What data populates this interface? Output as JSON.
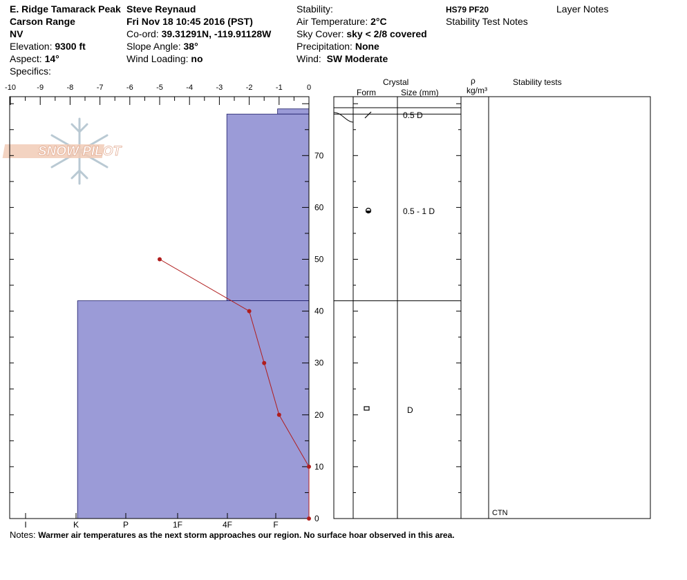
{
  "header": {
    "location": "E. Ridge Tamarack Peak",
    "range": "Carson Range",
    "state": "NV",
    "elevation_label": "Elevation:",
    "elevation_value": "9300 ft",
    "aspect_label": "Aspect:",
    "aspect_value": "14°",
    "specifics_label": "Specifics:",
    "observer": "Steve Reynaud",
    "datetime": "Fri Nov 18 10:45 2016 (PST)",
    "coord_label": "Co-ord:",
    "coord_value": "39.31291N, -119.91128W",
    "slope_label": "Slope Angle:",
    "slope_value": "38°",
    "wind_loading_label": "Wind Loading:",
    "wind_loading_value": "no",
    "stability_label": "Stability:",
    "air_temp_label": "Air Temperature:",
    "air_temp_value": "2°C",
    "sky_label": "Sky Cover:",
    "sky_value": "sky < 2/8 covered",
    "precip_label": "Precipitation:",
    "precip_value": "None",
    "wind_label": "Wind:",
    "wind_value": "SW Moderate",
    "hs_pf": "HS79 PF20",
    "stability_test_notes": "Stability Test Notes",
    "layer_notes": "Layer Notes"
  },
  "table": {
    "crystal_header": "Crystal",
    "form_header": "Form",
    "size_header": "Size (mm)",
    "rho_header": "ρ",
    "density_unit": "kg/m³",
    "stability_tests_header": "Stability tests"
  },
  "logo_text": "SNOW PILOT",
  "notes_label": "Notes:",
  "notes_text": "Warmer air temperatures as the next storm approaches our region.  No surface hoar observed in this area.",
  "colors": {
    "layer_fill": "#9b9bd7",
    "temp_line": "#b01d1d",
    "logo": "#e8b6a0"
  },
  "chart_data": {
    "type": "snow_profile",
    "temperature_axis": {
      "ticks": [
        -10,
        -9,
        -8,
        -7,
        -6,
        -5,
        -4,
        -3,
        -2,
        -1,
        0
      ],
      "range": [
        -10,
        0
      ]
    },
    "height_axis": {
      "ticks": [
        0,
        10,
        20,
        30,
        40,
        50,
        60,
        70
      ],
      "range": [
        0,
        80
      ],
      "unit": "cm"
    },
    "hardness_axis": {
      "labels": [
        "I",
        "K",
        "P",
        "1F",
        "4F",
        "F"
      ]
    },
    "layers": [
      {
        "top": 79,
        "bottom": 78,
        "hardness": "1F",
        "hardness_value": -1.05,
        "form": "decomposing",
        "size": ""
      },
      {
        "top": 78,
        "bottom": 42,
        "hardness": "1F-4F",
        "hardness_value": -2.75,
        "form": "rounded",
        "size": "0.5 - 1 D"
      },
      {
        "top": 42,
        "bottom": 0,
        "hardness": "K",
        "hardness_value": -7.75,
        "form": "faceted",
        "size": "D"
      }
    ],
    "size_labels": [
      {
        "height": 78,
        "text": "0.5 D"
      },
      {
        "height": 59,
        "text": "0.5 - 1 D"
      },
      {
        "height": 21,
        "text": "D"
      }
    ],
    "temperature_profile": [
      {
        "height": 50,
        "temp": -5.0
      },
      {
        "height": 40,
        "temp": -2.0
      },
      {
        "height": 30,
        "temp": -1.5
      },
      {
        "height": 20,
        "temp": -1.0
      },
      {
        "height": 10,
        "temp": 0.0
      },
      {
        "height": 0,
        "temp": 0.0
      }
    ],
    "stability_tests": [
      {
        "height": 0,
        "text": "CTN"
      }
    ]
  }
}
